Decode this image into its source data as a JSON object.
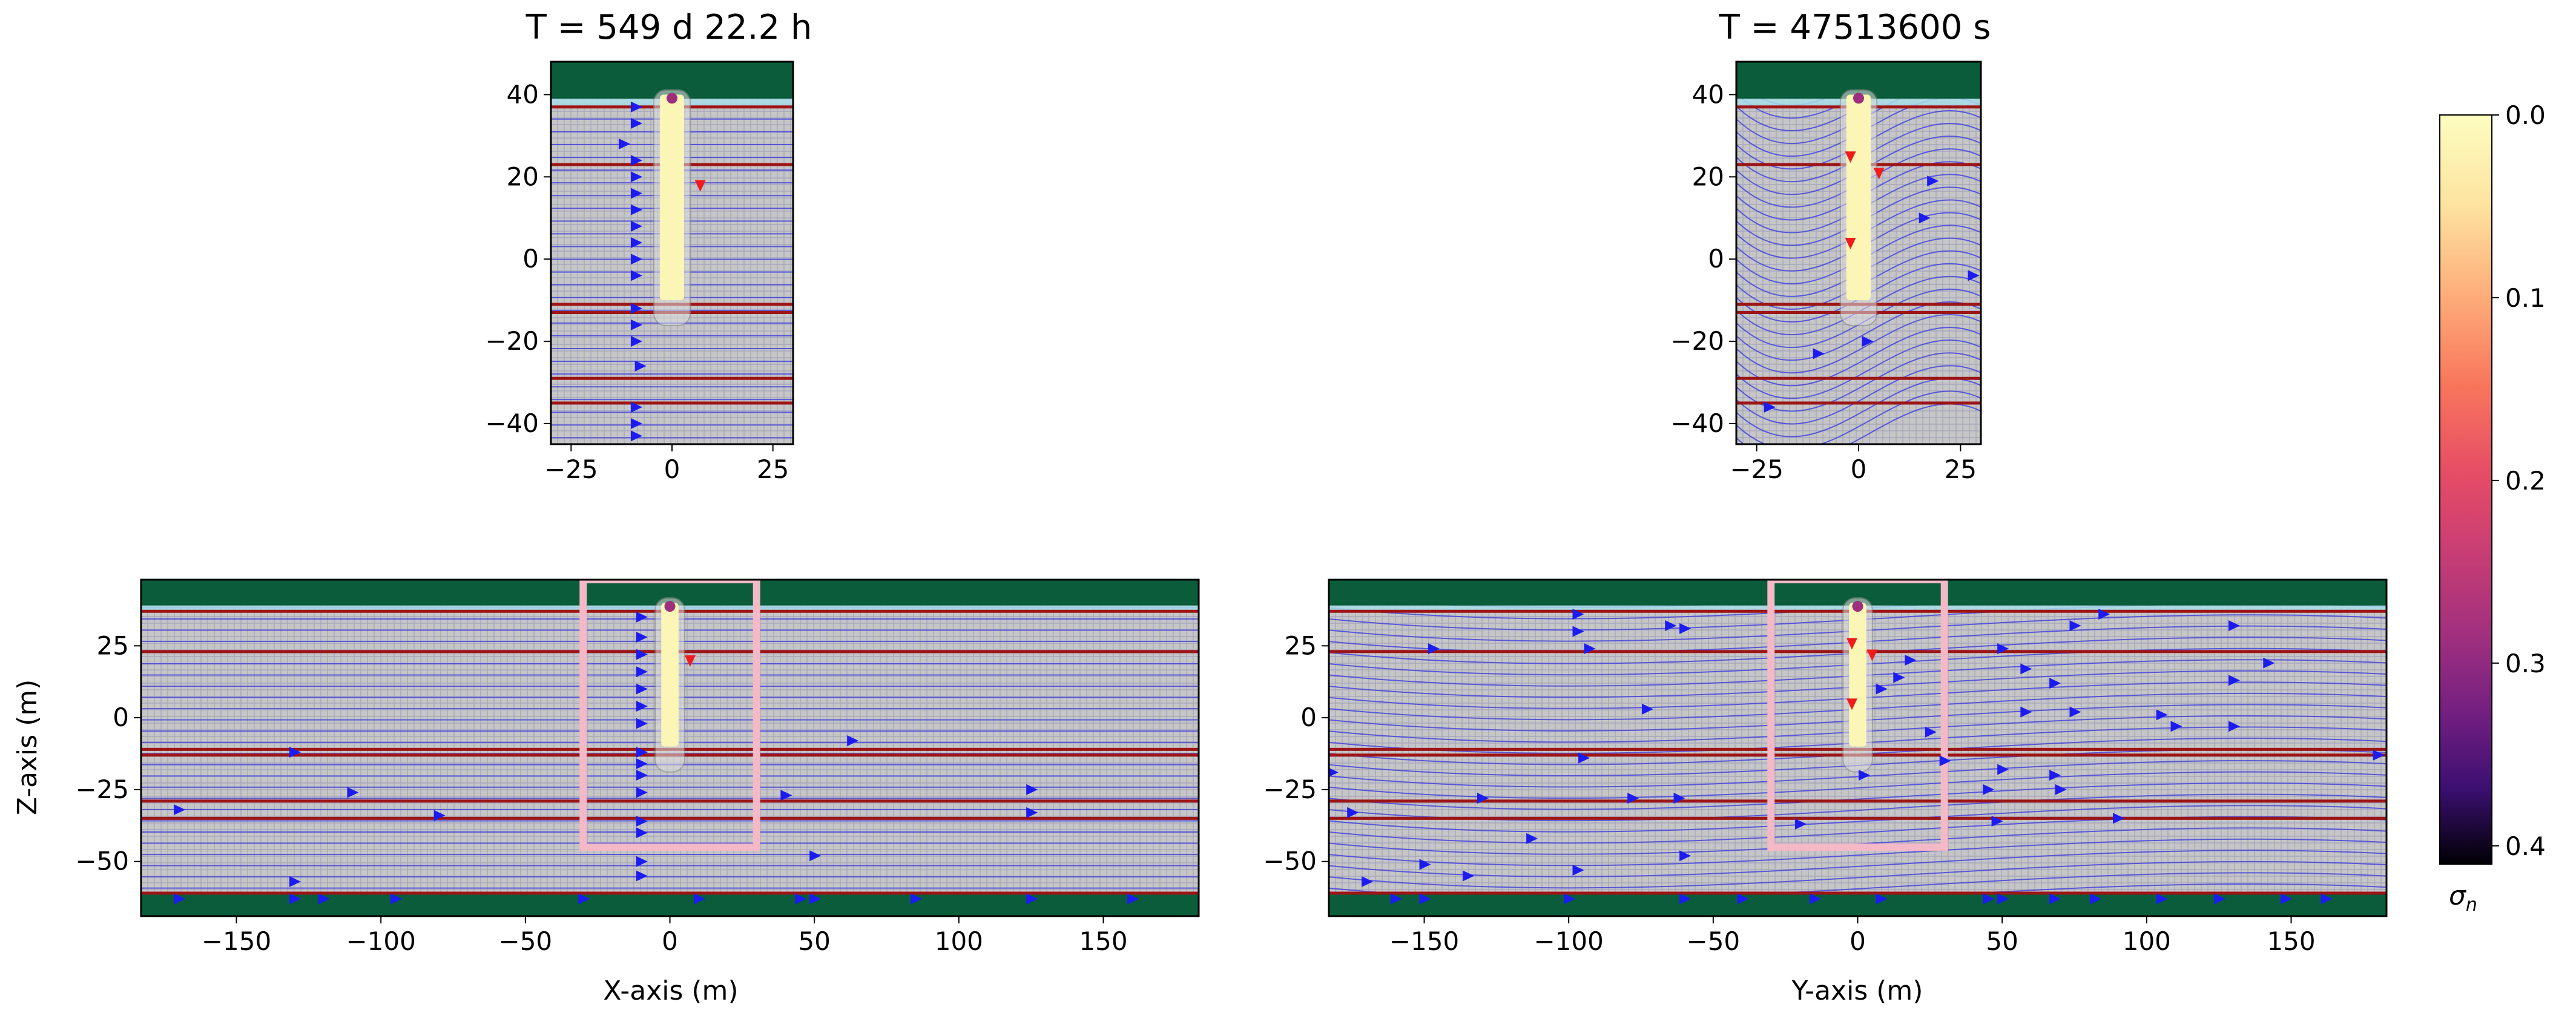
{
  "figure": {
    "titles": {
      "top_left": "T = 549 d 22.2 h",
      "top_right": "T = 47513600 s"
    },
    "colorbar": {
      "label": "σ",
      "label_sub": "n",
      "ticks": [
        "0.0",
        "0.1",
        "0.2",
        "0.3",
        "0.4"
      ],
      "range": [
        0.0,
        0.41
      ],
      "inverted": true,
      "colormap": "magma"
    },
    "colors": {
      "mesh_bg": "#c6c6c6",
      "grid_line": "#a7a7bd",
      "streamline": "#3d3dde",
      "layer_line": "#9e1515",
      "top_layer": "#0a5c3a",
      "water_band": "#a8dde6",
      "bottom_layer": "#0a5c3a",
      "frame": "#f5b8c6",
      "arrow_blue": "#1c1cf0",
      "arrow_red": "#f01c1c",
      "plume": "#fbf5b6"
    }
  },
  "chart_data": [
    {
      "id": "top_left",
      "type": "heatmap",
      "title": "T = 549 d 22.2 h",
      "xlabel": "",
      "ylabel": "",
      "xlim": [
        -30,
        30
      ],
      "ylim": [
        -45,
        48
      ],
      "xticks": [
        -25,
        0,
        25
      ],
      "xtick_labels": [
        "−25",
        "0",
        "25"
      ],
      "yticks": [
        -40,
        -20,
        0,
        20,
        40
      ],
      "ytick_labels": [
        "−40",
        "−20",
        "0",
        "20",
        "40"
      ],
      "layer_boundaries_z": [
        37,
        23,
        -11,
        -13,
        -29,
        -35
      ],
      "top_green_z": [
        39,
        48
      ],
      "plume": {
        "x": [
          -3,
          3
        ],
        "z": [
          -10,
          40
        ]
      },
      "blue_arrows": [
        [
          -9,
          37
        ],
        [
          -9,
          33
        ],
        [
          -12,
          28
        ],
        [
          -9,
          24
        ],
        [
          -9,
          20
        ],
        [
          -9,
          16
        ],
        [
          -9,
          12
        ],
        [
          -9,
          8
        ],
        [
          -9,
          4
        ],
        [
          -9,
          0
        ],
        [
          -9,
          -4
        ],
        [
          -9,
          -12
        ],
        [
          -9,
          -16
        ],
        [
          -9,
          -20
        ],
        [
          -8,
          -26
        ],
        [
          -9,
          -36
        ],
        [
          -9,
          -40
        ],
        [
          -9,
          -43
        ]
      ],
      "red_arrows": [
        [
          7,
          18
        ]
      ]
    },
    {
      "id": "top_right",
      "type": "heatmap",
      "title": "T = 47513600 s",
      "xlabel": "",
      "ylabel": "",
      "xlim": [
        -30,
        30
      ],
      "ylim": [
        -45,
        48
      ],
      "xticks": [
        -25,
        0,
        25
      ],
      "xtick_labels": [
        "−25",
        "0",
        "25"
      ],
      "yticks": [
        -40,
        -20,
        0,
        20,
        40
      ],
      "ytick_labels": [
        "−40",
        "−20",
        "0",
        "20",
        "40"
      ],
      "layer_boundaries_z": [
        37,
        23,
        -11,
        -13,
        -29,
        -35
      ],
      "top_green_z": [
        39,
        48
      ],
      "plume": {
        "x": [
          -3,
          3
        ],
        "z": [
          -10,
          40
        ]
      },
      "blue_arrows": [
        [
          18,
          19
        ],
        [
          16,
          10
        ],
        [
          28,
          -4
        ],
        [
          2,
          -20
        ],
        [
          -10,
          -23
        ],
        [
          -22,
          -36
        ]
      ],
      "red_arrows": [
        [
          -2,
          25
        ],
        [
          5,
          21
        ],
        [
          -2,
          4
        ]
      ]
    },
    {
      "id": "bottom_left",
      "type": "heatmap",
      "xlabel": "X-axis (m)",
      "ylabel": "Z-axis (m)",
      "xlim": [
        -183,
        183
      ],
      "ylim": [
        -69,
        48
      ],
      "xticks": [
        -150,
        -100,
        -50,
        0,
        50,
        100,
        150
      ],
      "xtick_labels": [
        "−150",
        "−100",
        "−50",
        "0",
        "50",
        "100",
        "150"
      ],
      "yticks": [
        25,
        0,
        -25,
        -50
      ],
      "ytick_labels": [
        "25",
        "0",
        "−25",
        "−50"
      ],
      "layer_boundaries_z": [
        37,
        23,
        -11,
        -13,
        -29,
        -35
      ],
      "top_green_z": [
        39,
        48
      ],
      "bottom_green_z": [
        -69,
        -61
      ],
      "inset_box": {
        "x": [
          -30,
          30
        ],
        "z": [
          -45,
          48
        ]
      },
      "plume": {
        "x": [
          -3,
          3
        ],
        "z": [
          -10,
          40
        ]
      },
      "blue_arrows": [
        [
          -130,
          -12
        ],
        [
          -110,
          -26
        ],
        [
          -80,
          -34
        ],
        [
          -170,
          -32
        ],
        [
          -130,
          -57
        ],
        [
          -130,
          -63
        ],
        [
          -170,
          -63
        ],
        [
          -120,
          -63
        ],
        [
          -95,
          -63
        ],
        [
          -30,
          -63
        ],
        [
          10,
          -63
        ],
        [
          45,
          -63
        ],
        [
          50,
          -63
        ],
        [
          85,
          -63
        ],
        [
          125,
          -63
        ],
        [
          160,
          -63
        ],
        [
          63,
          -8
        ],
        [
          40,
          -27
        ],
        [
          125,
          -25
        ],
        [
          125,
          -33
        ],
        [
          50,
          -48
        ],
        [
          -10,
          35
        ],
        [
          -10,
          28
        ],
        [
          -10,
          22
        ],
        [
          -10,
          16
        ],
        [
          -10,
          10
        ],
        [
          -10,
          4
        ],
        [
          -10,
          -2
        ],
        [
          -10,
          -12
        ],
        [
          -10,
          -16
        ],
        [
          -10,
          -20
        ],
        [
          -10,
          -26
        ],
        [
          -10,
          -36
        ],
        [
          -10,
          -40
        ],
        [
          -10,
          -50
        ],
        [
          -10,
          -55
        ]
      ],
      "red_arrows": [
        [
          7,
          20
        ]
      ]
    },
    {
      "id": "bottom_right",
      "type": "heatmap",
      "xlabel": "Y-axis (m)",
      "ylabel": "",
      "xlim": [
        -183,
        183
      ],
      "ylim": [
        -69,
        48
      ],
      "xticks": [
        -150,
        -100,
        -50,
        0,
        50,
        100,
        150
      ],
      "xtick_labels": [
        "−150",
        "−100",
        "−50",
        "0",
        "50",
        "100",
        "150"
      ],
      "yticks": [
        25,
        0,
        -25,
        -50
      ],
      "ytick_labels": [
        "25",
        "0",
        "−25",
        "−50"
      ],
      "layer_boundaries_z": [
        37,
        23,
        -11,
        -13,
        -29,
        -35
      ],
      "top_green_z": [
        39,
        48
      ],
      "bottom_green_z": [
        -69,
        -61
      ],
      "inset_box": {
        "x": [
          -30,
          30
        ],
        "z": [
          -45,
          48
        ]
      },
      "plume": {
        "x": [
          -3,
          3
        ],
        "z": [
          -10,
          40
        ]
      },
      "blue_arrows": [
        [
          -97,
          36
        ],
        [
          -97,
          30
        ],
        [
          -65,
          32
        ],
        [
          -147,
          24
        ],
        [
          -93,
          24
        ],
        [
          -60,
          31
        ],
        [
          -73,
          3
        ],
        [
          -95,
          -14
        ],
        [
          -130,
          -28
        ],
        [
          -78,
          -28
        ],
        [
          -62,
          -28
        ],
        [
          -20,
          -37
        ],
        [
          -182,
          -19
        ],
        [
          -175,
          -33
        ],
        [
          -135,
          -55
        ],
        [
          -113,
          -42
        ],
        [
          -97,
          -53
        ],
        [
          -60,
          -48
        ],
        [
          -150,
          -51
        ],
        [
          -170,
          -57
        ],
        [
          -160,
          -63
        ],
        [
          -150,
          -63
        ],
        [
          -100,
          -63
        ],
        [
          -60,
          -63
        ],
        [
          -40,
          -63
        ],
        [
          -15,
          -63
        ],
        [
          8,
          -63
        ],
        [
          45,
          -63
        ],
        [
          50,
          -63
        ],
        [
          68,
          -63
        ],
        [
          82,
          -63
        ],
        [
          105,
          -63
        ],
        [
          125,
          -63
        ],
        [
          148,
          -63
        ],
        [
          162,
          -63
        ],
        [
          50,
          24
        ],
        [
          58,
          17
        ],
        [
          68,
          12
        ],
        [
          58,
          2
        ],
        [
          75,
          2
        ],
        [
          105,
          1
        ],
        [
          130,
          13
        ],
        [
          142,
          19
        ],
        [
          130,
          32
        ],
        [
          85,
          36
        ],
        [
          75,
          32
        ],
        [
          18,
          20
        ],
        [
          14,
          14
        ],
        [
          8,
          10
        ],
        [
          25,
          -5
        ],
        [
          30,
          -15
        ],
        [
          50,
          -18
        ],
        [
          45,
          -25
        ],
        [
          68,
          -20
        ],
        [
          70,
          -25
        ],
        [
          48,
          -36
        ],
        [
          90,
          -35
        ],
        [
          130,
          -3
        ],
        [
          110,
          -3
        ],
        [
          180,
          -13
        ],
        [
          2,
          -20
        ]
      ],
      "red_arrows": [
        [
          -2,
          26
        ],
        [
          5,
          22
        ],
        [
          -2,
          5
        ]
      ]
    }
  ]
}
